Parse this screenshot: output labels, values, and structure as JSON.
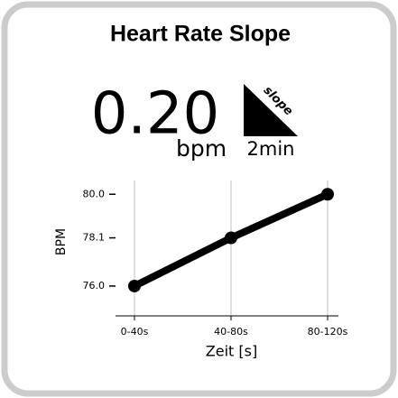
{
  "header": {
    "title": "Heart Rate Slope"
  },
  "metric": {
    "value": "0.20",
    "unit": "bpm",
    "icon_label": "slope",
    "window": "2min"
  },
  "chart_data": {
    "type": "line",
    "categories": [
      "0-40s",
      "40-80s",
      "80-120s"
    ],
    "values": [
      76.0,
      78.1,
      80.0
    ],
    "color": "#000000",
    "x_label": "Zeit [s]",
    "y_label": "BPM",
    "ylim": [
      74.7,
      80.6
    ],
    "yticks": [
      {
        "value": 76.0,
        "label": "76.0"
      },
      {
        "value": 78.1,
        "label": "78.1"
      },
      {
        "value": 80.0,
        "label": "80.0"
      }
    ],
    "grid": true
  }
}
